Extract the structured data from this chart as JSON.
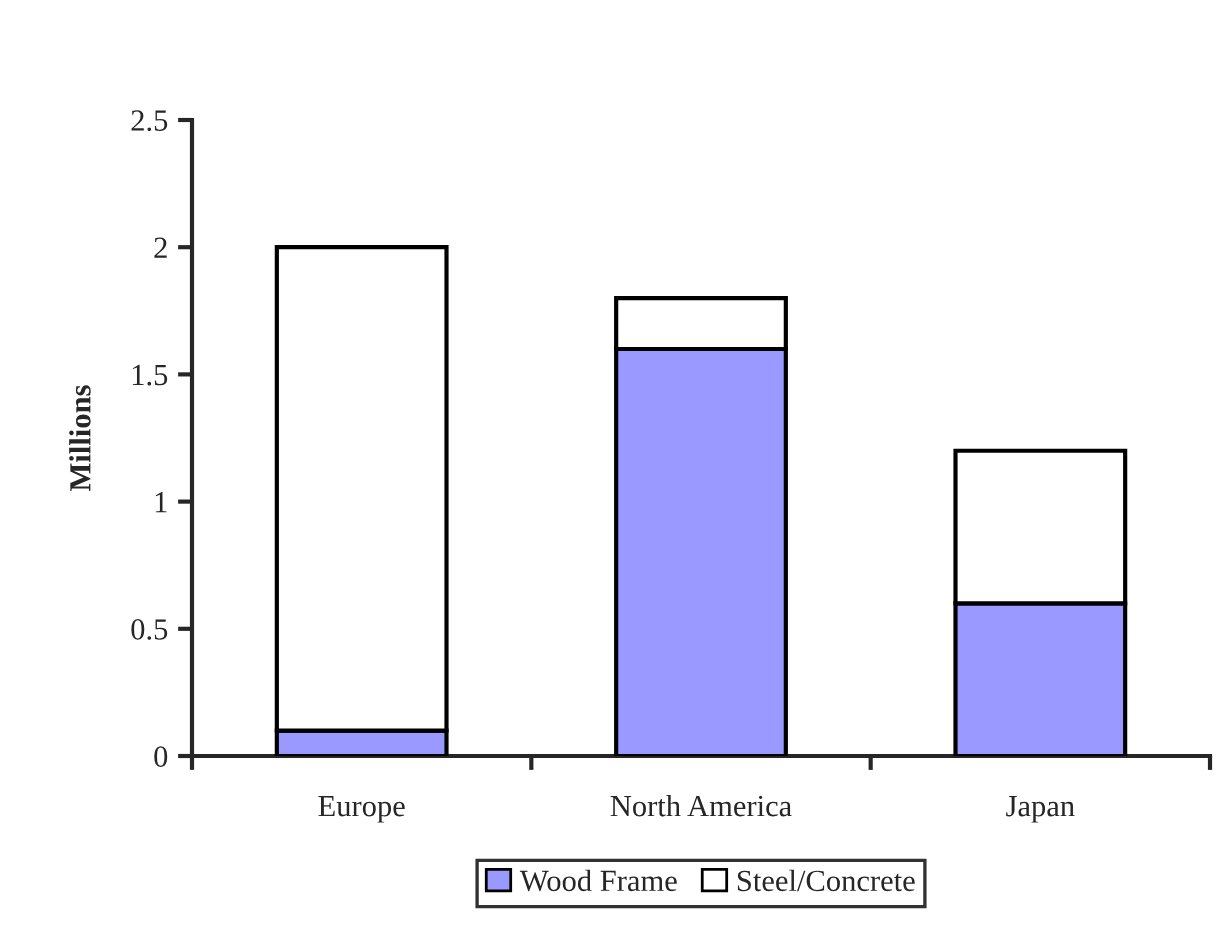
{
  "chart_data": {
    "type": "bar",
    "stacked": true,
    "ylabel": "Millions",
    "categories": [
      "Europe",
      "North America",
      "Japan"
    ],
    "series": [
      {
        "name": "Wood Frame",
        "color": "#9999ff",
        "values": [
          0.1,
          1.6,
          0.6
        ]
      },
      {
        "name": "Steel/Concrete",
        "color": "#ffffff",
        "values": [
          1.9,
          0.2,
          0.6
        ]
      }
    ],
    "ylim": [
      0,
      2.5
    ],
    "yticks": [
      0,
      0.5,
      1,
      1.5,
      2,
      2.5
    ],
    "grid": false,
    "legend": "bottom"
  }
}
